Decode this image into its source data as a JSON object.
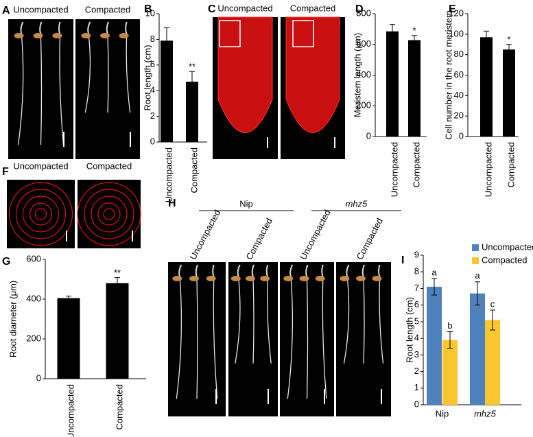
{
  "images": [
    {
      "panel": "A",
      "labels": [
        "Uncompacted",
        "Compacted"
      ]
    },
    {
      "panel": "C",
      "labels": [
        "Uncompacted",
        "Compacted"
      ]
    },
    {
      "panel": "F",
      "labels": [
        "Uncompacted",
        "Compacted"
      ]
    },
    {
      "panel": "H",
      "groups": [
        {
          "name": "Nip",
          "labels": [
            "Uncompacted",
            "Compacted"
          ]
        },
        {
          "name": "mhz5",
          "labels": [
            "Uncompacted",
            "Compacted"
          ]
        }
      ]
    }
  ],
  "chart_data": [
    {
      "panel": "B",
      "type": "bar",
      "ylabel": "Root length (cm)",
      "categories": [
        "Uncompacted",
        "Compacted"
      ],
      "values": [
        7.9,
        4.7
      ],
      "errors": [
        1.0,
        0.8
      ],
      "marks": [
        null,
        "**"
      ],
      "color": "#000000",
      "ylim": [
        0,
        10
      ],
      "yticks": [
        0,
        2,
        4,
        6,
        8,
        10
      ]
    },
    {
      "panel": "D",
      "type": "bar",
      "ylabel": "Meristem length (μm)",
      "categories": [
        "Uncompacted",
        "Compacted"
      ],
      "values": [
        685,
        628
      ],
      "errors": [
        45,
        30
      ],
      "marks": [
        null,
        "*"
      ],
      "color": "#000000",
      "ylim": [
        0,
        800
      ],
      "yticks": [
        0,
        200,
        400,
        600,
        800
      ]
    },
    {
      "panel": "E",
      "type": "bar",
      "ylabel": "Cell number in the root meristem",
      "categories": [
        "Uncompacted",
        "Compacted"
      ],
      "values": [
        97,
        85
      ],
      "errors": [
        6,
        5
      ],
      "marks": [
        null,
        "*"
      ],
      "color": "#000000",
      "ylim": [
        0,
        120
      ],
      "yticks": [
        0,
        20,
        40,
        60,
        80,
        100,
        120
      ]
    },
    {
      "panel": "G",
      "type": "bar",
      "ylabel": "Root diameter (μm)",
      "categories": [
        "Uncompacted",
        "Compacted"
      ],
      "values": [
        405,
        480
      ],
      "errors": [
        10,
        28
      ],
      "marks": [
        null,
        "**"
      ],
      "color": "#000000",
      "ylim": [
        0,
        600
      ],
      "yticks": [
        0,
        200,
        400,
        600
      ]
    },
    {
      "panel": "I",
      "type": "grouped_bar",
      "ylabel": "Root length (cm)",
      "categories": [
        "Nip",
        "mhz5"
      ],
      "series": [
        {
          "name": "Uncompacted",
          "color": "#4f81bd",
          "values": [
            7.1,
            6.7
          ],
          "errors": [
            0.5,
            0.7
          ],
          "letters": [
            "a",
            "a"
          ]
        },
        {
          "name": "Compacted",
          "color": "#fcc72e",
          "values": [
            3.9,
            5.1
          ],
          "errors": [
            0.5,
            0.6
          ],
          "letters": [
            "b",
            "c"
          ]
        }
      ],
      "legend": "top-right",
      "ylim": [
        0,
        9
      ],
      "yticks": [
        0,
        1,
        2,
        3,
        4,
        5,
        6,
        7,
        8,
        9
      ]
    }
  ]
}
